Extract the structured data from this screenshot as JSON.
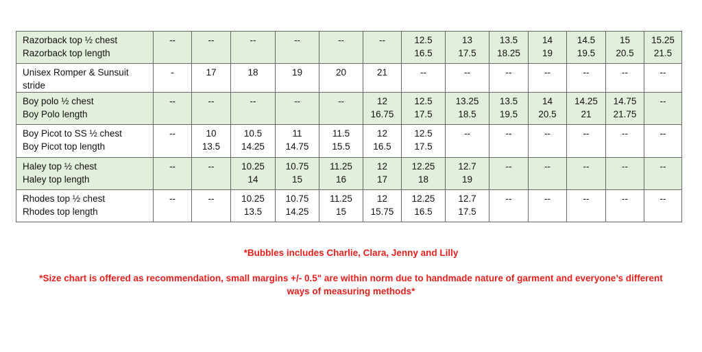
{
  "rows": [
    {
      "label": [
        "Razorback top ½ chest",
        "Razorback top length"
      ],
      "shaded": true,
      "cells": [
        [
          "--"
        ],
        [
          "--"
        ],
        [
          "--"
        ],
        [
          "--"
        ],
        [
          "--"
        ],
        [
          "--"
        ],
        [
          "12.5",
          "16.5"
        ],
        [
          "13",
          "17.5"
        ],
        [
          "13.5",
          "18.25"
        ],
        [
          "14",
          "19"
        ],
        [
          "14.5",
          "19.5"
        ],
        [
          "15",
          "20.5"
        ],
        [
          "15.25",
          "21.5"
        ]
      ]
    },
    {
      "label": [
        "Unisex Romper & Sunsuit",
        "stride"
      ],
      "shaded": false,
      "cells": [
        [
          "-"
        ],
        [
          "17"
        ],
        [
          "18"
        ],
        [
          "19"
        ],
        [
          "20"
        ],
        [
          "21"
        ],
        [
          "--"
        ],
        [
          "--"
        ],
        [
          "--"
        ],
        [
          "--"
        ],
        [
          "--"
        ],
        [
          "--"
        ],
        [
          "--"
        ]
      ]
    },
    {
      "label": [
        "Boy polo ½ chest",
        "Boy Polo length"
      ],
      "shaded": true,
      "cells": [
        [
          "--"
        ],
        [
          "--"
        ],
        [
          "--"
        ],
        [
          "--"
        ],
        [
          "--"
        ],
        [
          "12",
          "16.75"
        ],
        [
          "12.5",
          "17.5"
        ],
        [
          "13.25",
          "18.5"
        ],
        [
          "13.5",
          "19.5"
        ],
        [
          "14",
          "20.5"
        ],
        [
          "14.25",
          "21"
        ],
        [
          "14.75",
          "21.75"
        ],
        [
          "--"
        ]
      ]
    },
    {
      "label": [
        "Boy Picot to SS ½ chest",
        "Boy Picot top length"
      ],
      "shaded": false,
      "cells": [
        [
          "--"
        ],
        [
          "10",
          "13.5"
        ],
        [
          "10.5",
          "14.25"
        ],
        [
          "11",
          "14.75"
        ],
        [
          "11.5",
          "15.5"
        ],
        [
          "12",
          "16.5"
        ],
        [
          "12.5",
          "17.5"
        ],
        [
          "--"
        ],
        [
          "--"
        ],
        [
          "--"
        ],
        [
          "--"
        ],
        [
          "--"
        ],
        [
          "--"
        ]
      ]
    },
    {
      "label": [
        "Haley top ½ chest",
        "Haley top length"
      ],
      "shaded": true,
      "cells": [
        [
          "--"
        ],
        [
          "--"
        ],
        [
          "10.25",
          "14"
        ],
        [
          "10.75",
          "15"
        ],
        [
          "11.25",
          "16"
        ],
        [
          "12",
          "17"
        ],
        [
          "12.25",
          "18"
        ],
        [
          "12.7",
          "19"
        ],
        [
          "--"
        ],
        [
          "--"
        ],
        [
          "--"
        ],
        [
          "--"
        ],
        [
          "--"
        ]
      ]
    },
    {
      "label": [
        "Rhodes top ½ chest",
        "Rhodes top length"
      ],
      "shaded": false,
      "cells": [
        [
          "--"
        ],
        [
          "--"
        ],
        [
          "10.25",
          "13.5"
        ],
        [
          "10.75",
          "14.25"
        ],
        [
          "11.25",
          "15"
        ],
        [
          "12",
          "15.75"
        ],
        [
          "12.25",
          "16.5"
        ],
        [
          "12.7",
          "17.5"
        ],
        [
          "--"
        ],
        [
          "--"
        ],
        [
          "--"
        ],
        [
          "--"
        ],
        [
          "--"
        ]
      ]
    }
  ],
  "notes": {
    "bubbles": "*Bubbles includes Charlie, Clara, Jenny and Lilly",
    "disclaimer_line1": "*Size chart is offered as recommendation, small margins +/- 0.5\" are within norm due to handmade nature of garment and everyone’s different",
    "disclaimer_line2": "ways of measuring methods*"
  },
  "colors": {
    "shaded_row": "#e2efda",
    "note_text": "#e8201c"
  }
}
